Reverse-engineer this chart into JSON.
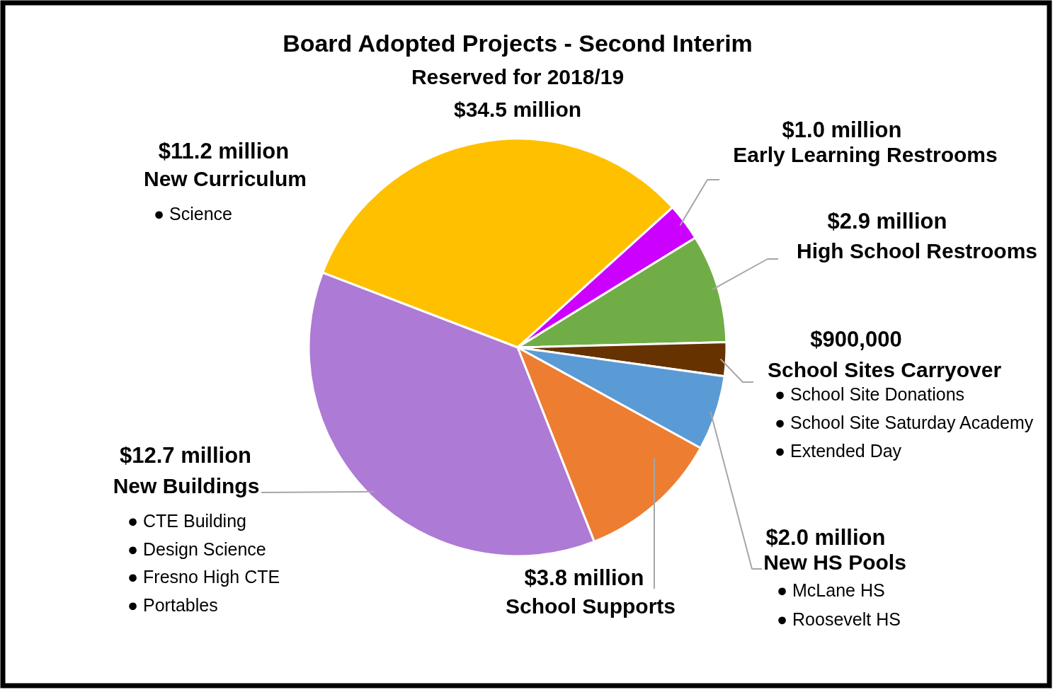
{
  "chart_data": {
    "type": "pie",
    "title": "Board Adopted Projects - Second Interim",
    "subtitle": "Reserved for 2018/19\n$34.5 million",
    "categories": [
      "New Curriculum",
      "Early Learning Restrooms",
      "High School Restrooms",
      "School Sites Carryover",
      "New HS Pools",
      "School Supports",
      "New Buildings"
    ],
    "values": [
      11200000,
      1000000,
      2900000,
      900000,
      2000000,
      3800000,
      12700000
    ],
    "value_labels": [
      "$11.2 million",
      "$1.0 million",
      "$2.9 million",
      "$900,000",
      "$2.0 million",
      "$3.8 million",
      "$12.7 million"
    ],
    "colors": [
      "#ffc000",
      "#cc00ff",
      "#70ad47",
      "#663300",
      "#5b9bd5",
      "#ed7d31",
      "#ad7ad6"
    ],
    "annotations": [
      "● Science",
      "● School Site Donations",
      "● School Site Saturday Academy",
      "● Extended Day",
      "● McLane HS",
      "● Roosevelt HS",
      "● CTE Building",
      "● Design Science",
      "● Fresno High CTE",
      "● Portables"
    ]
  }
}
